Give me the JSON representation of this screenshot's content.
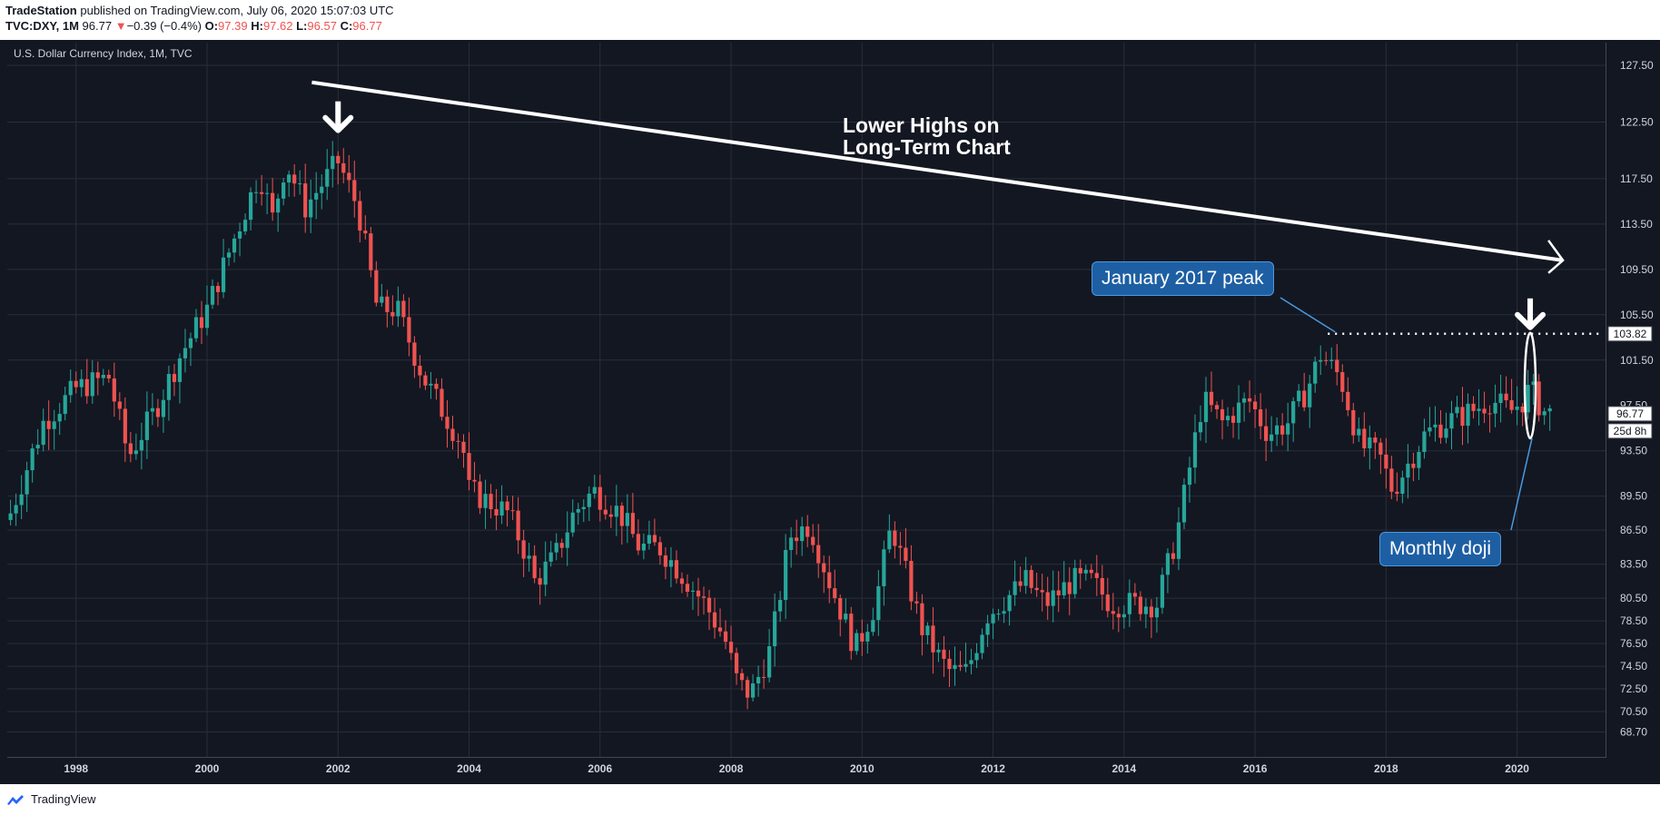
{
  "header": {
    "publisher": "TradeStation",
    "published_text": " published on TradingView.com, July 06, 2020 15:07:03 UTC",
    "symbol": "TVC:DXY, 1M",
    "last": "96.77",
    "change_arrow": "▼",
    "change": "−0.39 (−0.4%)",
    "o_label": "O:",
    "o_value": "97.39",
    "h_label": "H:",
    "h_value": "97.62",
    "l_label": "L:",
    "l_value": "96.57",
    "c_label": "C:",
    "c_value": "96.77"
  },
  "chart": {
    "symbol_label": "U.S. Dollar Currency Index, 1M, TVC",
    "annotation_text_line1": "Lower Highs on",
    "annotation_text_line2": "Long-Term Chart",
    "callout_january": "January 2017 peak",
    "callout_doji": "Monthly doji",
    "price_badge": "103.82",
    "last_price_badge": "96.77",
    "countdown_badge": "25d 8h",
    "hidden_tick": "97.50"
  },
  "footer": {
    "brand": "TradingView"
  },
  "colors": {
    "background": "#131722",
    "up": "#26a69a",
    "down": "#ef5350",
    "grid": "#2a2e39",
    "callout": "#1e5fa3"
  },
  "chart_data": {
    "type": "candlestick",
    "title": "U.S. Dollar Currency Index, 1M, TVC",
    "x_ticks": [
      "1998",
      "2000",
      "2002",
      "2004",
      "2006",
      "2008",
      "2010",
      "2012",
      "2014",
      "2016",
      "2018",
      "2020"
    ],
    "y_ticks": [
      "127.50",
      "122.50",
      "117.50",
      "113.50",
      "109.50",
      "105.50",
      "101.50",
      "93.50",
      "89.50",
      "86.50",
      "83.50",
      "80.50",
      "78.50",
      "76.50",
      "74.50",
      "72.50",
      "70.50",
      "68.70"
    ],
    "ylim": [
      66.5,
      129.5
    ],
    "xlim": [
      1996.95,
      2021.35
    ],
    "grid": true,
    "anchors": [
      [
        1997.0,
        88
      ],
      [
        1997.5,
        96
      ],
      [
        1998.0,
        99
      ],
      [
        1998.5,
        100
      ],
      [
        1998.8,
        93
      ],
      [
        1999.2,
        97
      ],
      [
        1999.6,
        102
      ],
      [
        2000.0,
        106
      ],
      [
        2000.4,
        112
      ],
      [
        2000.8,
        118
      ],
      [
        2001.0,
        114
      ],
      [
        2001.2,
        119
      ],
      [
        2001.5,
        115
      ],
      [
        2002.0,
        119
      ],
      [
        2002.3,
        115
      ],
      [
        2002.6,
        106
      ],
      [
        2002.9,
        106
      ],
      [
        2003.3,
        100
      ],
      [
        2003.6,
        97
      ],
      [
        2003.9,
        94
      ],
      [
        2004.0,
        90
      ],
      [
        2004.3,
        89
      ],
      [
        2004.6,
        88
      ],
      [
        2004.9,
        84
      ],
      [
        2005.0,
        82
      ],
      [
        2005.3,
        84
      ],
      [
        2005.6,
        88
      ],
      [
        2005.9,
        90
      ],
      [
        2006.3,
        88
      ],
      [
        2006.6,
        85
      ],
      [
        2006.9,
        85
      ],
      [
        2007.2,
        83
      ],
      [
        2007.6,
        80
      ],
      [
        2007.9,
        77
      ],
      [
        2008.1,
        73
      ],
      [
        2008.3,
        72
      ],
      [
        2008.6,
        76
      ],
      [
        2008.9,
        86
      ],
      [
        2009.2,
        87
      ],
      [
        2009.5,
        82
      ],
      [
        2009.9,
        76
      ],
      [
        2010.2,
        80
      ],
      [
        2010.45,
        87
      ],
      [
        2010.7,
        82
      ],
      [
        2010.9,
        78
      ],
      [
        2011.2,
        75
      ],
      [
        2011.35,
        74
      ],
      [
        2011.6,
        74
      ],
      [
        2011.9,
        79
      ],
      [
        2012.3,
        81
      ],
      [
        2012.5,
        82
      ],
      [
        2012.8,
        80
      ],
      [
        2013.2,
        82
      ],
      [
        2013.5,
        82
      ],
      [
        2013.8,
        80
      ],
      [
        2014.2,
        80
      ],
      [
        2014.5,
        80
      ],
      [
        2014.8,
        86
      ],
      [
        2015.0,
        92
      ],
      [
        2015.2,
        98
      ],
      [
        2015.5,
        96
      ],
      [
        2015.9,
        98
      ],
      [
        2016.2,
        95
      ],
      [
        2016.5,
        96
      ],
      [
        2016.8,
        99
      ],
      [
        2017.0,
        102
      ],
      [
        2017.3,
        100
      ],
      [
        2017.6,
        94
      ],
      [
        2017.9,
        93
      ],
      [
        2018.1,
        90
      ],
      [
        2018.3,
        92
      ],
      [
        2018.6,
        95
      ],
      [
        2018.9,
        96
      ],
      [
        2019.3,
        97
      ],
      [
        2019.6,
        98
      ],
      [
        2019.9,
        97
      ],
      [
        2020.1,
        98
      ],
      [
        2020.2,
        99
      ],
      [
        2020.4,
        97
      ],
      [
        2020.5,
        96.77
      ]
    ],
    "annotations": {
      "trendline": [
        [
          2001.6,
          126.0
        ],
        [
          2020.7,
          110.3
        ]
      ],
      "peak_2017_level": 103.82,
      "peak_2017_x": 2017.0,
      "doji_x": 2020.2,
      "doji_range": [
        94.6,
        103.9
      ],
      "top_2002_x": 2002.0
    }
  }
}
